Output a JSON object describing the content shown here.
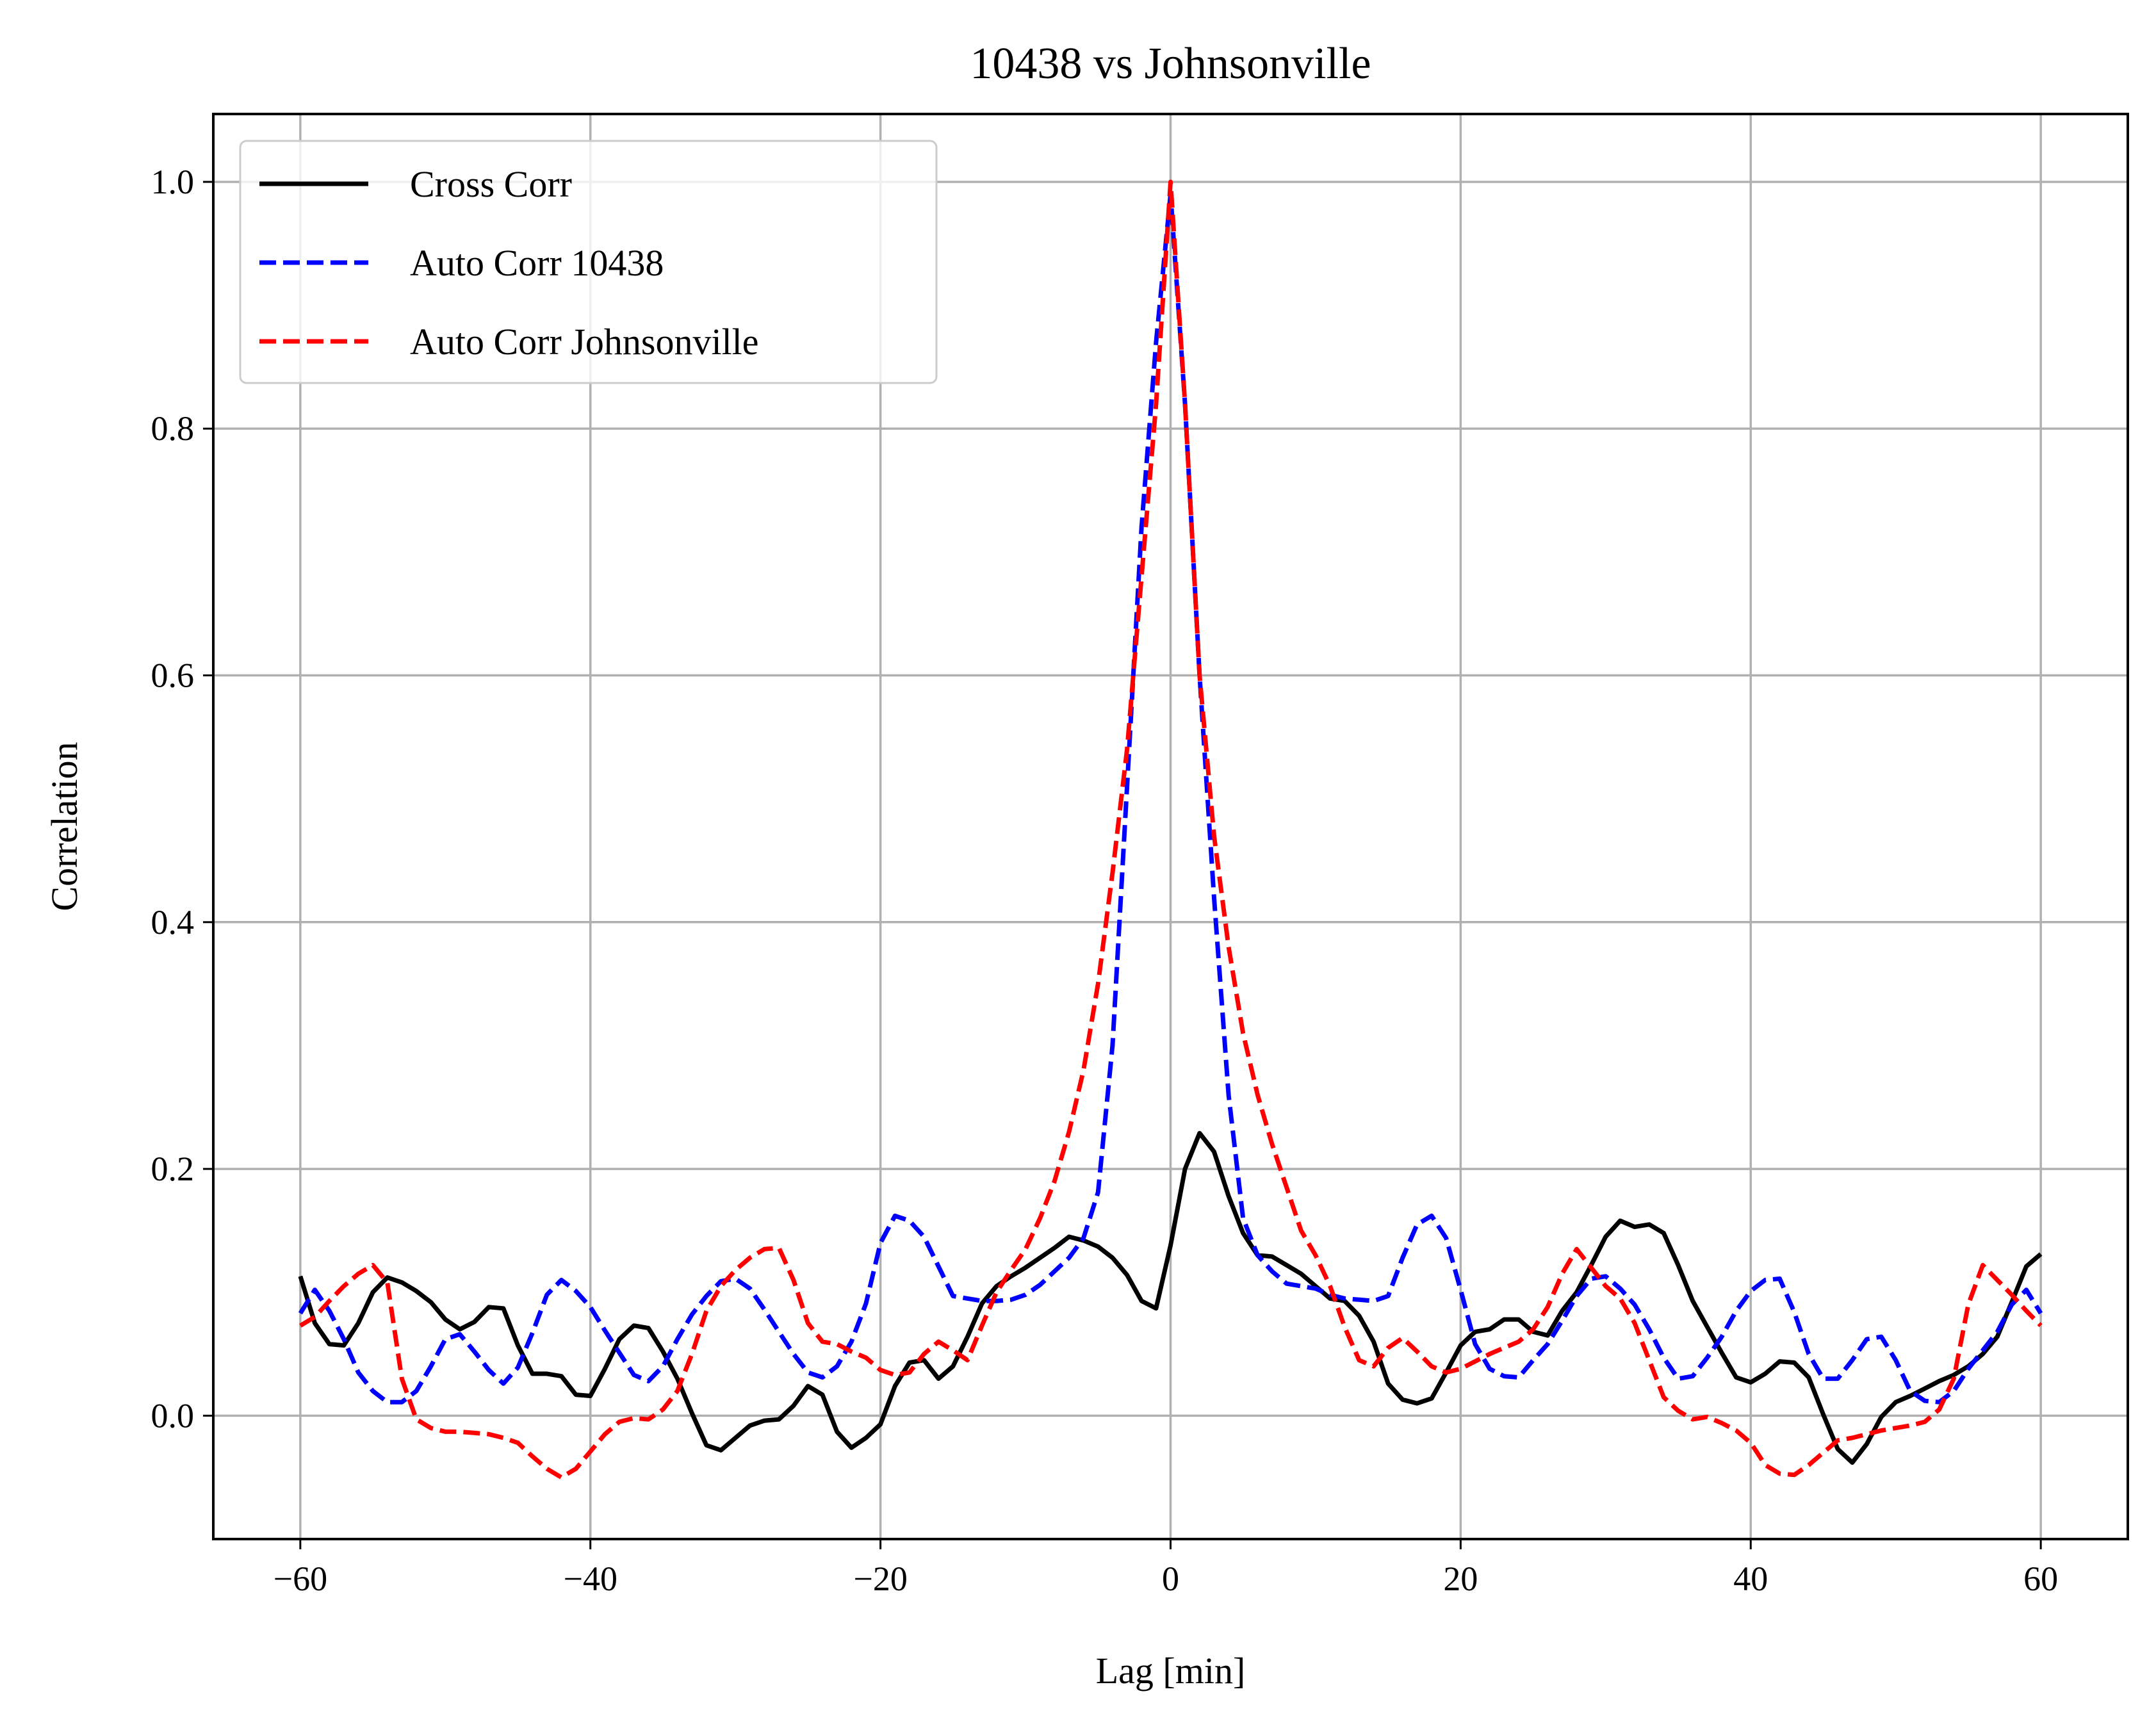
{
  "chart_data": {
    "type": "line",
    "title": "10438 vs Johnsonville",
    "xlabel": "Lag [min]",
    "ylabel": "Correlation",
    "xlim": [
      -66,
      66
    ],
    "ylim": [
      -0.1,
      1.055
    ],
    "xticks": [
      -60,
      -40,
      -20,
      0,
      20,
      40,
      60
    ],
    "xtick_labels": [
      "−60",
      "−40",
      "−20",
      "0",
      "20",
      "40",
      "60"
    ],
    "yticks": [
      0.0,
      0.2,
      0.4,
      0.6,
      0.8,
      1.0
    ],
    "ytick_labels": [
      "0.0",
      "0.2",
      "0.4",
      "0.6",
      "0.8",
      "1.0"
    ],
    "grid": true,
    "legend_position": "top-left",
    "x": [
      -60,
      -59,
      -58,
      -57,
      -56,
      -55,
      -54,
      -53,
      -52,
      -51,
      -50,
      -49,
      -48,
      -47,
      -46,
      -45,
      -44,
      -43,
      -42,
      -41,
      -40,
      -39,
      -38,
      -37,
      -36,
      -35,
      -34,
      -33,
      -32,
      -31,
      -30,
      -29,
      -28,
      -27,
      -26,
      -25,
      -24,
      -23,
      -22,
      -21,
      -20,
      -19,
      -18,
      -17,
      -16,
      -15,
      -14,
      -13,
      -12,
      -11,
      -10,
      -9,
      -8,
      -7,
      -6,
      -5,
      -4,
      -3,
      -2,
      -1,
      0,
      1,
      2,
      3,
      4,
      5,
      6,
      7,
      8,
      9,
      10,
      11,
      12,
      13,
      14,
      15,
      16,
      17,
      18,
      19,
      20,
      21,
      22,
      23,
      24,
      25,
      26,
      27,
      28,
      29,
      30,
      31,
      32,
      33,
      34,
      35,
      36,
      37,
      38,
      39,
      40,
      41,
      42,
      43,
      44,
      45,
      46,
      47,
      48,
      49,
      50,
      51,
      52,
      53,
      54,
      55,
      56,
      57,
      58,
      59,
      60
    ],
    "series": [
      {
        "name": "Cross Corr",
        "color": "#000000",
        "dash": "solid",
        "values": [
          0.113,
          0.075,
          0.058,
          0.057,
          0.075,
          0.1,
          0.112,
          0.108,
          0.101,
          0.092,
          0.078,
          0.07,
          0.076,
          0.088,
          0.087,
          0.057,
          0.034,
          0.034,
          0.032,
          0.017,
          0.016,
          0.038,
          0.062,
          0.073,
          0.071,
          0.052,
          0.03,
          0.002,
          -0.024,
          -0.028,
          -0.018,
          -0.008,
          -0.004,
          -0.003,
          0.008,
          0.024,
          0.017,
          -0.013,
          -0.026,
          -0.018,
          -0.007,
          0.024,
          0.043,
          0.045,
          0.03,
          0.04,
          0.064,
          0.091,
          0.105,
          0.113,
          0.12,
          0.128,
          0.136,
          0.145,
          0.142,
          0.137,
          0.128,
          0.114,
          0.093,
          0.087,
          0.138,
          0.2,
          0.229,
          0.214,
          0.178,
          0.148,
          0.13,
          0.129,
          0.122,
          0.115,
          0.105,
          0.095,
          0.093,
          0.081,
          0.06,
          0.026,
          0.013,
          0.01,
          0.014,
          0.035,
          0.057,
          0.068,
          0.07,
          0.078,
          0.078,
          0.068,
          0.065,
          0.085,
          0.1,
          0.122,
          0.145,
          0.158,
          0.153,
          0.155,
          0.148,
          0.122,
          0.093,
          0.072,
          0.051,
          0.031,
          0.027,
          0.034,
          0.044,
          0.043,
          0.031,
          0.001,
          -0.027,
          -0.038,
          -0.023,
          -0.001,
          0.011,
          0.016,
          0.022,
          0.028,
          0.033,
          0.04,
          0.05,
          0.064,
          0.092,
          0.121,
          0.131
        ]
      },
      {
        "name": "Auto Corr 10438",
        "color": "#0000ff",
        "dash": "dashed",
        "values": [
          0.083,
          0.102,
          0.085,
          0.062,
          0.035,
          0.02,
          0.011,
          0.011,
          0.02,
          0.04,
          0.062,
          0.066,
          0.052,
          0.037,
          0.026,
          0.039,
          0.067,
          0.098,
          0.11,
          0.101,
          0.088,
          0.069,
          0.051,
          0.033,
          0.028,
          0.04,
          0.062,
          0.082,
          0.097,
          0.109,
          0.111,
          0.103,
          0.086,
          0.068,
          0.05,
          0.035,
          0.031,
          0.04,
          0.06,
          0.091,
          0.14,
          0.162,
          0.158,
          0.145,
          0.121,
          0.097,
          0.095,
          0.093,
          0.093,
          0.094,
          0.098,
          0.106,
          0.117,
          0.128,
          0.144,
          0.181,
          0.3,
          0.51,
          0.72,
          0.87,
          0.99,
          0.82,
          0.6,
          0.42,
          0.26,
          0.16,
          0.13,
          0.117,
          0.107,
          0.105,
          0.103,
          0.098,
          0.095,
          0.094,
          0.093,
          0.097,
          0.128,
          0.155,
          0.162,
          0.144,
          0.102,
          0.058,
          0.038,
          0.032,
          0.031,
          0.045,
          0.058,
          0.077,
          0.097,
          0.111,
          0.113,
          0.103,
          0.09,
          0.07,
          0.047,
          0.03,
          0.032,
          0.047,
          0.064,
          0.085,
          0.101,
          0.11,
          0.111,
          0.084,
          0.05,
          0.03,
          0.03,
          0.045,
          0.062,
          0.064,
          0.045,
          0.02,
          0.012,
          0.011,
          0.02,
          0.038,
          0.053,
          0.068,
          0.09,
          0.102,
          0.083
        ]
      },
      {
        "name": "Auto Corr Johnsonville",
        "color": "#ff0000",
        "dash": "dashed",
        "values": [
          0.073,
          0.08,
          0.093,
          0.105,
          0.115,
          0.122,
          0.108,
          0.03,
          -0.003,
          -0.01,
          -0.013,
          -0.013,
          -0.014,
          -0.015,
          -0.018,
          -0.022,
          -0.033,
          -0.043,
          -0.05,
          -0.043,
          -0.029,
          -0.015,
          -0.005,
          -0.002,
          -0.003,
          0.005,
          0.02,
          0.05,
          0.085,
          0.105,
          0.118,
          0.128,
          0.135,
          0.136,
          0.11,
          0.075,
          0.06,
          0.058,
          0.052,
          0.047,
          0.037,
          0.033,
          0.035,
          0.05,
          0.06,
          0.053,
          0.045,
          0.073,
          0.1,
          0.118,
          0.135,
          0.16,
          0.19,
          0.23,
          0.28,
          0.35,
          0.44,
          0.54,
          0.68,
          0.82,
          1.0,
          0.82,
          0.6,
          0.47,
          0.38,
          0.31,
          0.26,
          0.22,
          0.185,
          0.15,
          0.13,
          0.105,
          0.072,
          0.045,
          0.04,
          0.055,
          0.063,
          0.052,
          0.04,
          0.035,
          0.038,
          0.044,
          0.05,
          0.055,
          0.06,
          0.07,
          0.088,
          0.115,
          0.135,
          0.12,
          0.105,
          0.095,
          0.075,
          0.045,
          0.015,
          0.004,
          -0.003,
          -0.001,
          -0.006,
          -0.012,
          -0.022,
          -0.04,
          -0.047,
          -0.048,
          -0.04,
          -0.03,
          -0.02,
          -0.018,
          -0.015,
          -0.012,
          -0.01,
          -0.008,
          -0.005,
          0.005,
          0.03,
          0.09,
          0.122,
          0.11,
          0.098,
          0.085,
          0.073
        ]
      }
    ]
  }
}
